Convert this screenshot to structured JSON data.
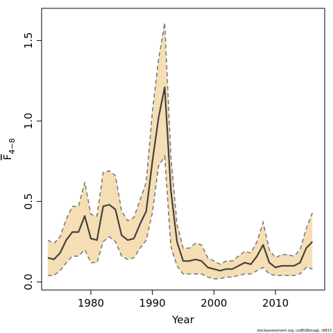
{
  "chart_data": {
    "type": "area",
    "title": "",
    "xlabel": "Year",
    "ylabel": {
      "base": "F",
      "subscript": "4−8"
    },
    "xlim": [
      1972,
      2018
    ],
    "ylim": [
      -0.05,
      1.7
    ],
    "x_ticks": [
      1980,
      1990,
      2000,
      2010
    ],
    "y_ticks": [
      0.0,
      0.5,
      1.0,
      1.5
    ],
    "y_tick_labels": [
      "0.0",
      "0.5",
      "1.0",
      "1.5"
    ],
    "grid": false,
    "legend": "none",
    "colors": {
      "band": "#f5deb3",
      "bound_line": "#7a7a7a",
      "median_line": "#404040",
      "frame": "#000000"
    },
    "x": [
      1973,
      1974,
      1975,
      1976,
      1977,
      1978,
      1979,
      1980,
      1981,
      1982,
      1983,
      1984,
      1985,
      1986,
      1987,
      1988,
      1989,
      1990,
      1991,
      1992,
      1993,
      1994,
      1995,
      1996,
      1997,
      1998,
      1999,
      2000,
      2001,
      2002,
      2003,
      2004,
      2005,
      2006,
      2007,
      2008,
      2009,
      2010,
      2011,
      2012,
      2013,
      2014,
      2015,
      2016
    ],
    "series": [
      {
        "role": "median",
        "values": [
          0.15,
          0.14,
          0.18,
          0.26,
          0.31,
          0.31,
          0.41,
          0.27,
          0.26,
          0.47,
          0.48,
          0.45,
          0.29,
          0.26,
          0.27,
          0.36,
          0.44,
          0.75,
          1.02,
          1.21,
          0.57,
          0.25,
          0.13,
          0.13,
          0.14,
          0.13,
          0.09,
          0.08,
          0.07,
          0.08,
          0.08,
          0.1,
          0.12,
          0.11,
          0.16,
          0.23,
          0.12,
          0.09,
          0.1,
          0.1,
          0.1,
          0.12,
          0.21,
          0.25
        ]
      },
      {
        "role": "upper",
        "values": [
          0.26,
          0.24,
          0.28,
          0.39,
          0.47,
          0.47,
          0.62,
          0.42,
          0.41,
          0.68,
          0.69,
          0.66,
          0.44,
          0.38,
          0.4,
          0.51,
          0.62,
          1.06,
          1.38,
          1.61,
          0.78,
          0.36,
          0.21,
          0.21,
          0.24,
          0.23,
          0.15,
          0.13,
          0.11,
          0.13,
          0.13,
          0.16,
          0.19,
          0.18,
          0.25,
          0.37,
          0.2,
          0.15,
          0.17,
          0.17,
          0.16,
          0.2,
          0.33,
          0.43
        ]
      },
      {
        "role": "lower",
        "values": [
          0.04,
          0.04,
          0.07,
          0.12,
          0.16,
          0.16,
          0.2,
          0.12,
          0.12,
          0.25,
          0.28,
          0.25,
          0.16,
          0.14,
          0.15,
          0.21,
          0.26,
          0.43,
          0.72,
          0.78,
          0.22,
          0.1,
          0.05,
          0.05,
          0.05,
          0.05,
          0.03,
          0.02,
          0.02,
          0.03,
          0.03,
          0.04,
          0.05,
          0.05,
          0.07,
          0.09,
          0.05,
          0.04,
          0.04,
          0.04,
          0.04,
          0.05,
          0.09,
          0.08
        ]
      }
    ]
  },
  "footnote": "stockassessment.org, codEGBenagt, r8813"
}
